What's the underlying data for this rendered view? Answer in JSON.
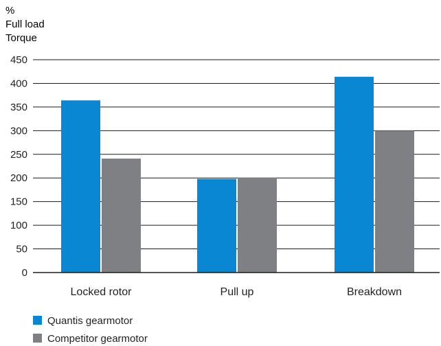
{
  "chart_data": {
    "type": "bar",
    "ylabel": [
      "%",
      "Full load",
      "Torque"
    ],
    "categories": [
      "Locked rotor",
      "Pull up",
      "Breakdown"
    ],
    "series": [
      {
        "name": "Quantis gearmotor",
        "color": "#0a87d2",
        "values": [
          364,
          198,
          414
        ]
      },
      {
        "name": "Competitor gearmotor",
        "color": "#7f8083",
        "values": [
          241,
          201,
          300
        ]
      }
    ],
    "yticks": [
      0,
      50,
      100,
      150,
      200,
      250,
      300,
      350,
      400,
      450
    ],
    "ylim": [
      0,
      450
    ],
    "grid": true,
    "legend": "bottom-left"
  }
}
